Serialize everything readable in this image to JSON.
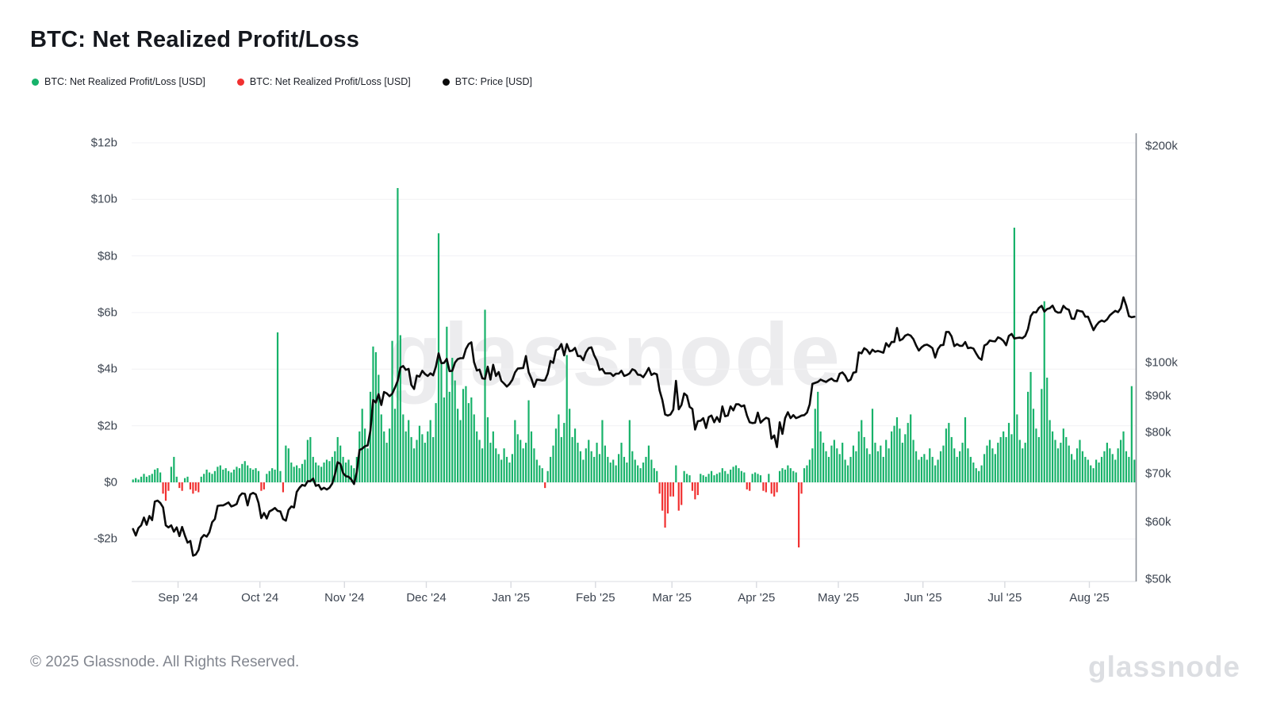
{
  "page": {
    "title": "BTC: Net Realized Profit/Loss"
  },
  "legend": [
    {
      "label": "BTC: Net Realized Profit/Loss [USD]",
      "color": "#17b26a"
    },
    {
      "label": "BTC: Net Realized Profit/Loss [USD]",
      "color": "#f13030"
    },
    {
      "label": "BTC: Price [USD]",
      "color": "#0a0a0a"
    }
  ],
  "watermark": "glassnode",
  "footer": {
    "copyright": "© 2025 Glassnode. All Rights Reserved.",
    "logo": "glassnode"
  },
  "chart_data": {
    "type": "bar",
    "subtype": "combo-bar-line-dual-axis",
    "title": "BTC: Net Realized Profit/Loss",
    "x": {
      "start_date": "2024-08-15",
      "end_date": "2025-08-17",
      "months": [
        {
          "label": "Sep '24",
          "day_index": 17
        },
        {
          "label": "Oct '24",
          "day_index": 47
        },
        {
          "label": "Nov '24",
          "day_index": 78
        },
        {
          "label": "Dec '24",
          "day_index": 108
        },
        {
          "label": "Jan '25",
          "day_index": 139
        },
        {
          "label": "Feb '25",
          "day_index": 170
        },
        {
          "label": "Mar '25",
          "day_index": 198
        },
        {
          "label": "Apr '25",
          "day_index": 229
        },
        {
          "label": "May '25",
          "day_index": 259
        },
        {
          "label": "Jun '25",
          "day_index": 290
        },
        {
          "label": "Jul '25",
          "day_index": 320
        },
        {
          "label": "Aug '25",
          "day_index": 351
        }
      ]
    },
    "y_left": {
      "unit": "billion USD",
      "scale": "linear",
      "ticks": [
        "$12b",
        "$10b",
        "$8b",
        "$6b",
        "$4b",
        "$2b",
        "$0",
        "-$2b"
      ],
      "tick_values": [
        12,
        10,
        8,
        6,
        4,
        2,
        0,
        -2
      ],
      "grid": true
    },
    "y_right": {
      "unit": "thousand USD",
      "scale": "log",
      "ticks": [
        "$200k",
        "$100k",
        "$90k",
        "$80k",
        "$70k",
        "$60k",
        "$50k"
      ],
      "tick_values": [
        200,
        100,
        90,
        80,
        70,
        60,
        50
      ]
    },
    "series": [
      {
        "name": "BTC: Net Realized Profit/Loss [USD]",
        "type": "bar",
        "axis": "left",
        "color_positive": "#17b26a",
        "color_negative": "#f13030",
        "unit": "billion USD",
        "values": [
          0.1,
          0.15,
          0.1,
          0.2,
          0.3,
          0.2,
          0.25,
          0.3,
          0.45,
          0.5,
          0.35,
          -0.4,
          -0.65,
          -0.3,
          0.55,
          0.9,
          0.2,
          -0.2,
          -0.3,
          0.15,
          0.2,
          -0.25,
          -0.4,
          -0.3,
          -0.35,
          0.2,
          0.3,
          0.45,
          0.35,
          0.3,
          0.4,
          0.55,
          0.6,
          0.45,
          0.5,
          0.4,
          0.35,
          0.45,
          0.55,
          0.5,
          0.65,
          0.75,
          0.6,
          0.5,
          0.45,
          0.5,
          0.4,
          -0.3,
          -0.25,
          0.3,
          0.4,
          0.5,
          0.45,
          5.3,
          0.4,
          -0.35,
          1.3,
          1.2,
          0.7,
          0.55,
          0.6,
          0.5,
          0.65,
          0.8,
          1.5,
          1.6,
          0.9,
          0.7,
          0.6,
          0.55,
          0.7,
          0.8,
          0.75,
          0.9,
          1.1,
          1.6,
          1.3,
          0.9,
          0.7,
          0.8,
          0.6,
          0.5,
          0.9,
          1.8,
          2.6,
          1.9,
          1.2,
          3.2,
          4.8,
          4.6,
          3.8,
          2.4,
          1.8,
          1.4,
          1.9,
          5.0,
          2.6,
          10.4,
          5.2,
          2.4,
          1.8,
          2.2,
          1.6,
          1.2,
          1.5,
          2.0,
          1.7,
          1.4,
          1.8,
          2.2,
          1.6,
          2.8,
          8.8,
          4.2,
          3.0,
          5.5,
          3.2,
          4.4,
          3.6,
          2.6,
          2.2,
          3.3,
          3.4,
          2.8,
          3.0,
          2.4,
          1.8,
          1.5,
          1.2,
          6.1,
          2.3,
          1.4,
          1.8,
          1.2,
          1.0,
          0.8,
          1.2,
          0.9,
          0.7,
          1.0,
          2.2,
          1.7,
          1.5,
          1.2,
          1.4,
          2.9,
          1.8,
          1.2,
          0.8,
          0.6,
          0.5,
          -0.2,
          0.4,
          0.9,
          1.3,
          1.9,
          2.4,
          1.6,
          2.1,
          4.5,
          2.6,
          1.6,
          1.9,
          1.4,
          1.1,
          0.8,
          1.2,
          1.5,
          1.1,
          0.9,
          1.4,
          1.0,
          2.2,
          1.3,
          0.9,
          0.7,
          0.8,
          0.6,
          1.0,
          1.4,
          0.9,
          0.7,
          2.2,
          1.1,
          0.8,
          0.6,
          0.5,
          0.7,
          0.9,
          1.3,
          0.8,
          0.5,
          0.4,
          -0.4,
          -1.0,
          -1.6,
          -1.1,
          -0.5,
          -0.5,
          0.6,
          -1.0,
          -0.8,
          0.4,
          0.3,
          0.25,
          -0.3,
          -0.6,
          -0.45,
          0.3,
          0.25,
          0.2,
          0.3,
          0.4,
          0.25,
          0.3,
          0.35,
          0.5,
          0.4,
          0.3,
          0.45,
          0.55,
          0.6,
          0.5,
          0.4,
          0.35,
          -0.25,
          -0.3,
          0.3,
          0.35,
          0.3,
          0.25,
          -0.3,
          -0.35,
          0.3,
          -0.4,
          -0.5,
          -0.35,
          0.4,
          0.5,
          0.45,
          0.6,
          0.5,
          0.4,
          0.35,
          -2.3,
          -0.4,
          0.5,
          0.6,
          0.8,
          1.2,
          2.6,
          3.2,
          1.8,
          1.4,
          1.1,
          0.9,
          1.3,
          1.5,
          1.2,
          1.0,
          1.4,
          0.8,
          0.6,
          0.9,
          1.3,
          1.1,
          1.8,
          2.2,
          1.6,
          1.2,
          1.0,
          2.6,
          1.4,
          1.1,
          1.3,
          0.9,
          1.5,
          1.2,
          1.8,
          2.0,
          2.3,
          1.9,
          1.4,
          1.7,
          2.1,
          2.4,
          1.5,
          1.1,
          0.8,
          0.9,
          1.0,
          0.8,
          1.2,
          0.9,
          0.6,
          0.8,
          1.1,
          1.3,
          1.9,
          2.1,
          1.6,
          1.2,
          0.9,
          1.1,
          1.4,
          2.3,
          1.2,
          0.9,
          0.7,
          0.5,
          0.4,
          0.6,
          1.0,
          1.3,
          1.5,
          1.2,
          1.0,
          1.4,
          1.6,
          1.8,
          1.6,
          2.1,
          1.7,
          9.0,
          2.4,
          1.5,
          1.2,
          1.4,
          3.2,
          3.9,
          2.6,
          1.9,
          1.6,
          3.3,
          6.4,
          3.7,
          2.2,
          1.8,
          1.5,
          1.2,
          1.4,
          1.9,
          1.6,
          1.3,
          1.0,
          0.8,
          1.2,
          1.5,
          1.1,
          0.9,
          0.8,
          0.6,
          0.5,
          0.8,
          0.7,
          0.9,
          1.1,
          1.4,
          1.2,
          1.0,
          0.8,
          1.2,
          1.5,
          1.8,
          1.1,
          0.9,
          3.4,
          0.8
        ]
      },
      {
        "name": "BTC: Price [USD]",
        "type": "line",
        "axis": "right",
        "color": "#0a0a0a",
        "unit": "thousand USD",
        "values": [
          58.7,
          57.5,
          58.9,
          59.4,
          60.9,
          59.5,
          61.2,
          60.4,
          64.1,
          64.3,
          63.8,
          62.9,
          59.4,
          59.0,
          59.4,
          58.2,
          59.0,
          57.4,
          59.1,
          57.5,
          56.2,
          56.5,
          53.9,
          54.1,
          54.9,
          57.0,
          57.6,
          57.3,
          58.1,
          60.0,
          60.6,
          63.2,
          63.3,
          63.3,
          63.6,
          63.9,
          63.1,
          63.3,
          63.6,
          65.2,
          65.8,
          65.7,
          63.3,
          65.6,
          65.9,
          65.6,
          63.8,
          60.8,
          61.8,
          60.7,
          62.1,
          62.4,
          62.8,
          62.2,
          62.1,
          60.6,
          60.3,
          62.4,
          63.1,
          62.9,
          66.1,
          67.0,
          67.6,
          67.4,
          68.4,
          68.4,
          69.0,
          67.4,
          67.6,
          66.6,
          67.0,
          66.6,
          67.0,
          67.9,
          69.9,
          72.7,
          72.3,
          70.2,
          69.5,
          69.4,
          68.8,
          67.8,
          70.4,
          75.6,
          75.9,
          76.5,
          76.7,
          80.4,
          88.7,
          88.0,
          90.4,
          87.3,
          91.0,
          90.6,
          89.8,
          90.5,
          92.3,
          94.3,
          98.4,
          98.9,
          97.7,
          98.0,
          93.1,
          91.9,
          95.9,
          95.6,
          97.4,
          96.4,
          95.8,
          96.6,
          96.0,
          98.7,
          103.0,
          99.8,
          99.9,
          101.2,
          97.3,
          97.4,
          100.0,
          101.1,
          101.4,
          101.4,
          104.4,
          106.1,
          106.7,
          100.1,
          97.5,
          97.8,
          95.1,
          94.9,
          98.7,
          94.7,
          99.3,
          95.8,
          97.0,
          94.3,
          93.5,
          92.6,
          93.4,
          94.6,
          96.9,
          98.1,
          98.2,
          98.3,
          102.1,
          96.9,
          95.0,
          92.5,
          94.7,
          94.6,
          94.4,
          94.5,
          96.5,
          100.5,
          99.9,
          104.0,
          104.5,
          106.1,
          102.3,
          106.1,
          103.7,
          103.9,
          104.8,
          102.1,
          102.1,
          100.8,
          103.3,
          104.7,
          105.0,
          102.4,
          100.6,
          97.7,
          98.0,
          96.6,
          96.6,
          96.6,
          95.8,
          96.5,
          96.5,
          97.4,
          95.8,
          96.1,
          96.6,
          97.9,
          97.5,
          96.2,
          96.1,
          95.4,
          96.7,
          98.3,
          96.1,
          96.6,
          96.3,
          91.4,
          88.7,
          84.7,
          84.4,
          84.7,
          86.0,
          94.3,
          86.1,
          87.3,
          90.6,
          89.9,
          86.8,
          86.2,
          80.7,
          82.9,
          83.0,
          83.7,
          81.1,
          84.0,
          84.4,
          82.6,
          84.0,
          82.7,
          86.9,
          84.2,
          84.4,
          86.9,
          85.8,
          87.5,
          87.5,
          86.9,
          87.2,
          84.4,
          82.6,
          82.4,
          82.5,
          85.2,
          82.5,
          83.2,
          83.8,
          83.5,
          78.4,
          79.2,
          76.3,
          82.6,
          79.6,
          83.7,
          85.3,
          83.7,
          84.5,
          83.7,
          84.0,
          84.4,
          84.5,
          85.2,
          87.5,
          93.4,
          93.7,
          94.0,
          94.7,
          94.3,
          94.0,
          94.6,
          95.0,
          94.3,
          94.2,
          96.5,
          96.9,
          95.9,
          94.2,
          94.7,
          96.8,
          97.0,
          103.3,
          103.0,
          104.7,
          104.1,
          102.8,
          104.2,
          103.5,
          103.8,
          103.5,
          103.2,
          106.4,
          105.2,
          106.8,
          106.8,
          111.7,
          107.3,
          107.8,
          109.0,
          109.4,
          109.0,
          107.8,
          105.6,
          103.9,
          105.0,
          105.7,
          105.9,
          105.4,
          104.7,
          101.6,
          104.4,
          105.7,
          105.8,
          110.3,
          110.3,
          108.7,
          105.4,
          106.1,
          105.5,
          105.5,
          106.8,
          104.7,
          104.9,
          104.6,
          103.0,
          101.5,
          100.9,
          105.6,
          106.1,
          107.3,
          107.1,
          107.0,
          108.4,
          108.0,
          107.2,
          105.7,
          108.9,
          109.6,
          108.0,
          108.2,
          108.3,
          108.1,
          108.9,
          111.3,
          116.0,
          117.5,
          117.4,
          119.1,
          119.9,
          117.7,
          118.7,
          119.0,
          120.0,
          117.9,
          117.3,
          117.4,
          119.9,
          118.8,
          118.4,
          115.1,
          115.0,
          118.2,
          117.9,
          117.7,
          115.8,
          115.8,
          113.4,
          110.9,
          112.6,
          113.8,
          114.4,
          114.0,
          114.8,
          116.3,
          117.2,
          118.0,
          117.5,
          119.0,
          123.2,
          120.0,
          116.0,
          115.6,
          115.8
        ]
      }
    ],
    "legend_position": "top-left",
    "grid": "horizontal-only"
  }
}
